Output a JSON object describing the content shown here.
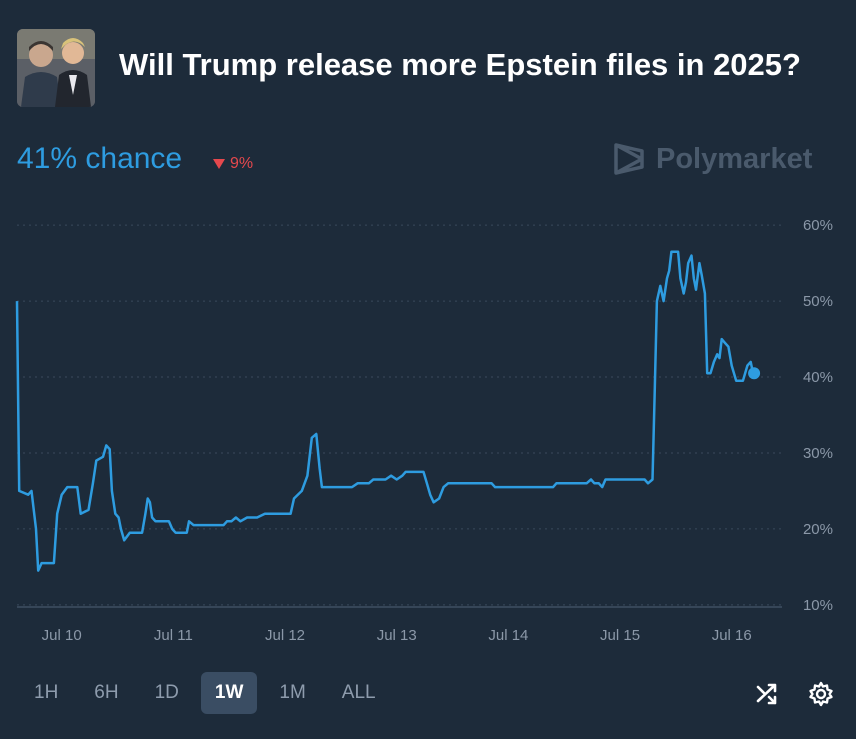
{
  "header": {
    "title": "Will Trump release more Epstein files in 2025?"
  },
  "summary": {
    "chance_text": "41% chance",
    "change_text": "9%",
    "change_direction": "down",
    "brand": "Polymarket"
  },
  "colors": {
    "background": "#1d2b3a",
    "line": "#2e9ce0",
    "down": "#e5484d",
    "active_range_bg": "#3a4d63"
  },
  "time_ranges": [
    "1H",
    "6H",
    "1D",
    "1W",
    "1M",
    "ALL"
  ],
  "active_range": "1W",
  "chart_data": {
    "type": "line",
    "title": "Will Trump release more Epstein files in 2025?",
    "xlabel": "",
    "ylabel": "",
    "x_tick_labels": [
      "Jul 10",
      "Jul 11",
      "Jul 12",
      "Jul 13",
      "Jul 14",
      "Jul 15",
      "Jul 16"
    ],
    "y_tick_labels": [
      "10%",
      "20%",
      "30%",
      "40%",
      "50%",
      "60%"
    ],
    "ylim": [
      8,
      62
    ],
    "xlim": [
      9.6,
      16.45
    ],
    "grid": "horizontal dotted",
    "series": [
      {
        "values": [
          [
            9.6,
            50
          ],
          [
            9.62,
            25
          ],
          [
            9.7,
            24.5
          ],
          [
            9.73,
            25
          ],
          [
            9.77,
            20
          ],
          [
            9.79,
            14.5
          ],
          [
            9.82,
            15.5
          ],
          [
            9.93,
            15.5
          ],
          [
            9.96,
            22
          ],
          [
            10.0,
            24.5
          ],
          [
            10.05,
            25.5
          ],
          [
            10.14,
            25.5
          ],
          [
            10.17,
            22
          ],
          [
            10.24,
            22.5
          ],
          [
            10.28,
            26
          ],
          [
            10.31,
            29
          ],
          [
            10.37,
            29.5
          ],
          [
            10.4,
            31
          ],
          [
            10.43,
            30.5
          ],
          [
            10.45,
            25
          ],
          [
            10.48,
            22
          ],
          [
            10.51,
            21.5
          ],
          [
            10.53,
            20
          ],
          [
            10.56,
            18.5
          ],
          [
            10.61,
            19.5
          ],
          [
            10.72,
            19.5
          ],
          [
            10.75,
            22
          ],
          [
            10.77,
            24
          ],
          [
            10.79,
            23.5
          ],
          [
            10.81,
            21.5
          ],
          [
            10.84,
            21
          ],
          [
            10.96,
            21
          ],
          [
            10.99,
            20
          ],
          [
            11.02,
            19.5
          ],
          [
            11.12,
            19.5
          ],
          [
            11.14,
            21
          ],
          [
            11.18,
            20.5
          ],
          [
            11.45,
            20.5
          ],
          [
            11.48,
            21
          ],
          [
            11.52,
            21
          ],
          [
            11.56,
            21.5
          ],
          [
            11.6,
            21
          ],
          [
            11.66,
            21.5
          ],
          [
            11.75,
            21.5
          ],
          [
            11.82,
            22
          ],
          [
            12.05,
            22
          ],
          [
            12.08,
            24
          ],
          [
            12.15,
            25
          ],
          [
            12.2,
            27
          ],
          [
            12.24,
            32
          ],
          [
            12.28,
            32.5
          ],
          [
            12.31,
            28
          ],
          [
            12.33,
            25.5
          ],
          [
            12.6,
            25.5
          ],
          [
            12.65,
            26
          ],
          [
            12.75,
            26
          ],
          [
            12.79,
            26.5
          ],
          [
            12.9,
            26.5
          ],
          [
            12.95,
            27
          ],
          [
            13.0,
            26.5
          ],
          [
            13.05,
            27
          ],
          [
            13.08,
            27.5
          ],
          [
            13.24,
            27.5
          ],
          [
            13.27,
            26
          ],
          [
            13.3,
            24.5
          ],
          [
            13.33,
            23.5
          ],
          [
            13.38,
            24
          ],
          [
            13.42,
            25.5
          ],
          [
            13.46,
            26
          ],
          [
            13.5,
            26
          ],
          [
            13.85,
            26
          ],
          [
            13.88,
            25.5
          ],
          [
            14.4,
            25.5
          ],
          [
            14.43,
            26
          ],
          [
            14.7,
            26
          ],
          [
            14.74,
            26.5
          ],
          [
            14.77,
            26
          ],
          [
            14.81,
            26
          ],
          [
            14.84,
            25.5
          ],
          [
            14.87,
            26.5
          ],
          [
            15.22,
            26.5
          ],
          [
            15.25,
            26
          ],
          [
            15.29,
            26.5
          ],
          [
            15.31,
            38
          ],
          [
            15.33,
            50
          ],
          [
            15.36,
            52
          ],
          [
            15.39,
            50
          ],
          [
            15.42,
            53
          ],
          [
            15.44,
            54
          ],
          [
            15.46,
            56.5
          ],
          [
            15.52,
            56.5
          ],
          [
            15.54,
            53
          ],
          [
            15.57,
            51
          ],
          [
            15.59,
            52.5
          ],
          [
            15.61,
            55
          ],
          [
            15.64,
            56
          ],
          [
            15.66,
            53
          ],
          [
            15.68,
            51.5
          ],
          [
            15.71,
            55
          ],
          [
            15.73,
            53.5
          ],
          [
            15.76,
            51
          ],
          [
            15.78,
            40.5
          ],
          [
            15.81,
            40.5
          ],
          [
            15.84,
            42
          ],
          [
            15.87,
            43
          ],
          [
            15.89,
            42.5
          ],
          [
            15.91,
            45
          ],
          [
            15.94,
            44.5
          ],
          [
            15.97,
            44
          ],
          [
            16.0,
            41.5
          ],
          [
            16.04,
            39.5
          ],
          [
            16.1,
            39.5
          ],
          [
            16.14,
            41.5
          ],
          [
            16.17,
            42
          ],
          [
            16.19,
            40.5
          ],
          [
            16.2,
            40.5
          ]
        ]
      }
    ],
    "last_point": [
      16.2,
      40.5
    ]
  }
}
